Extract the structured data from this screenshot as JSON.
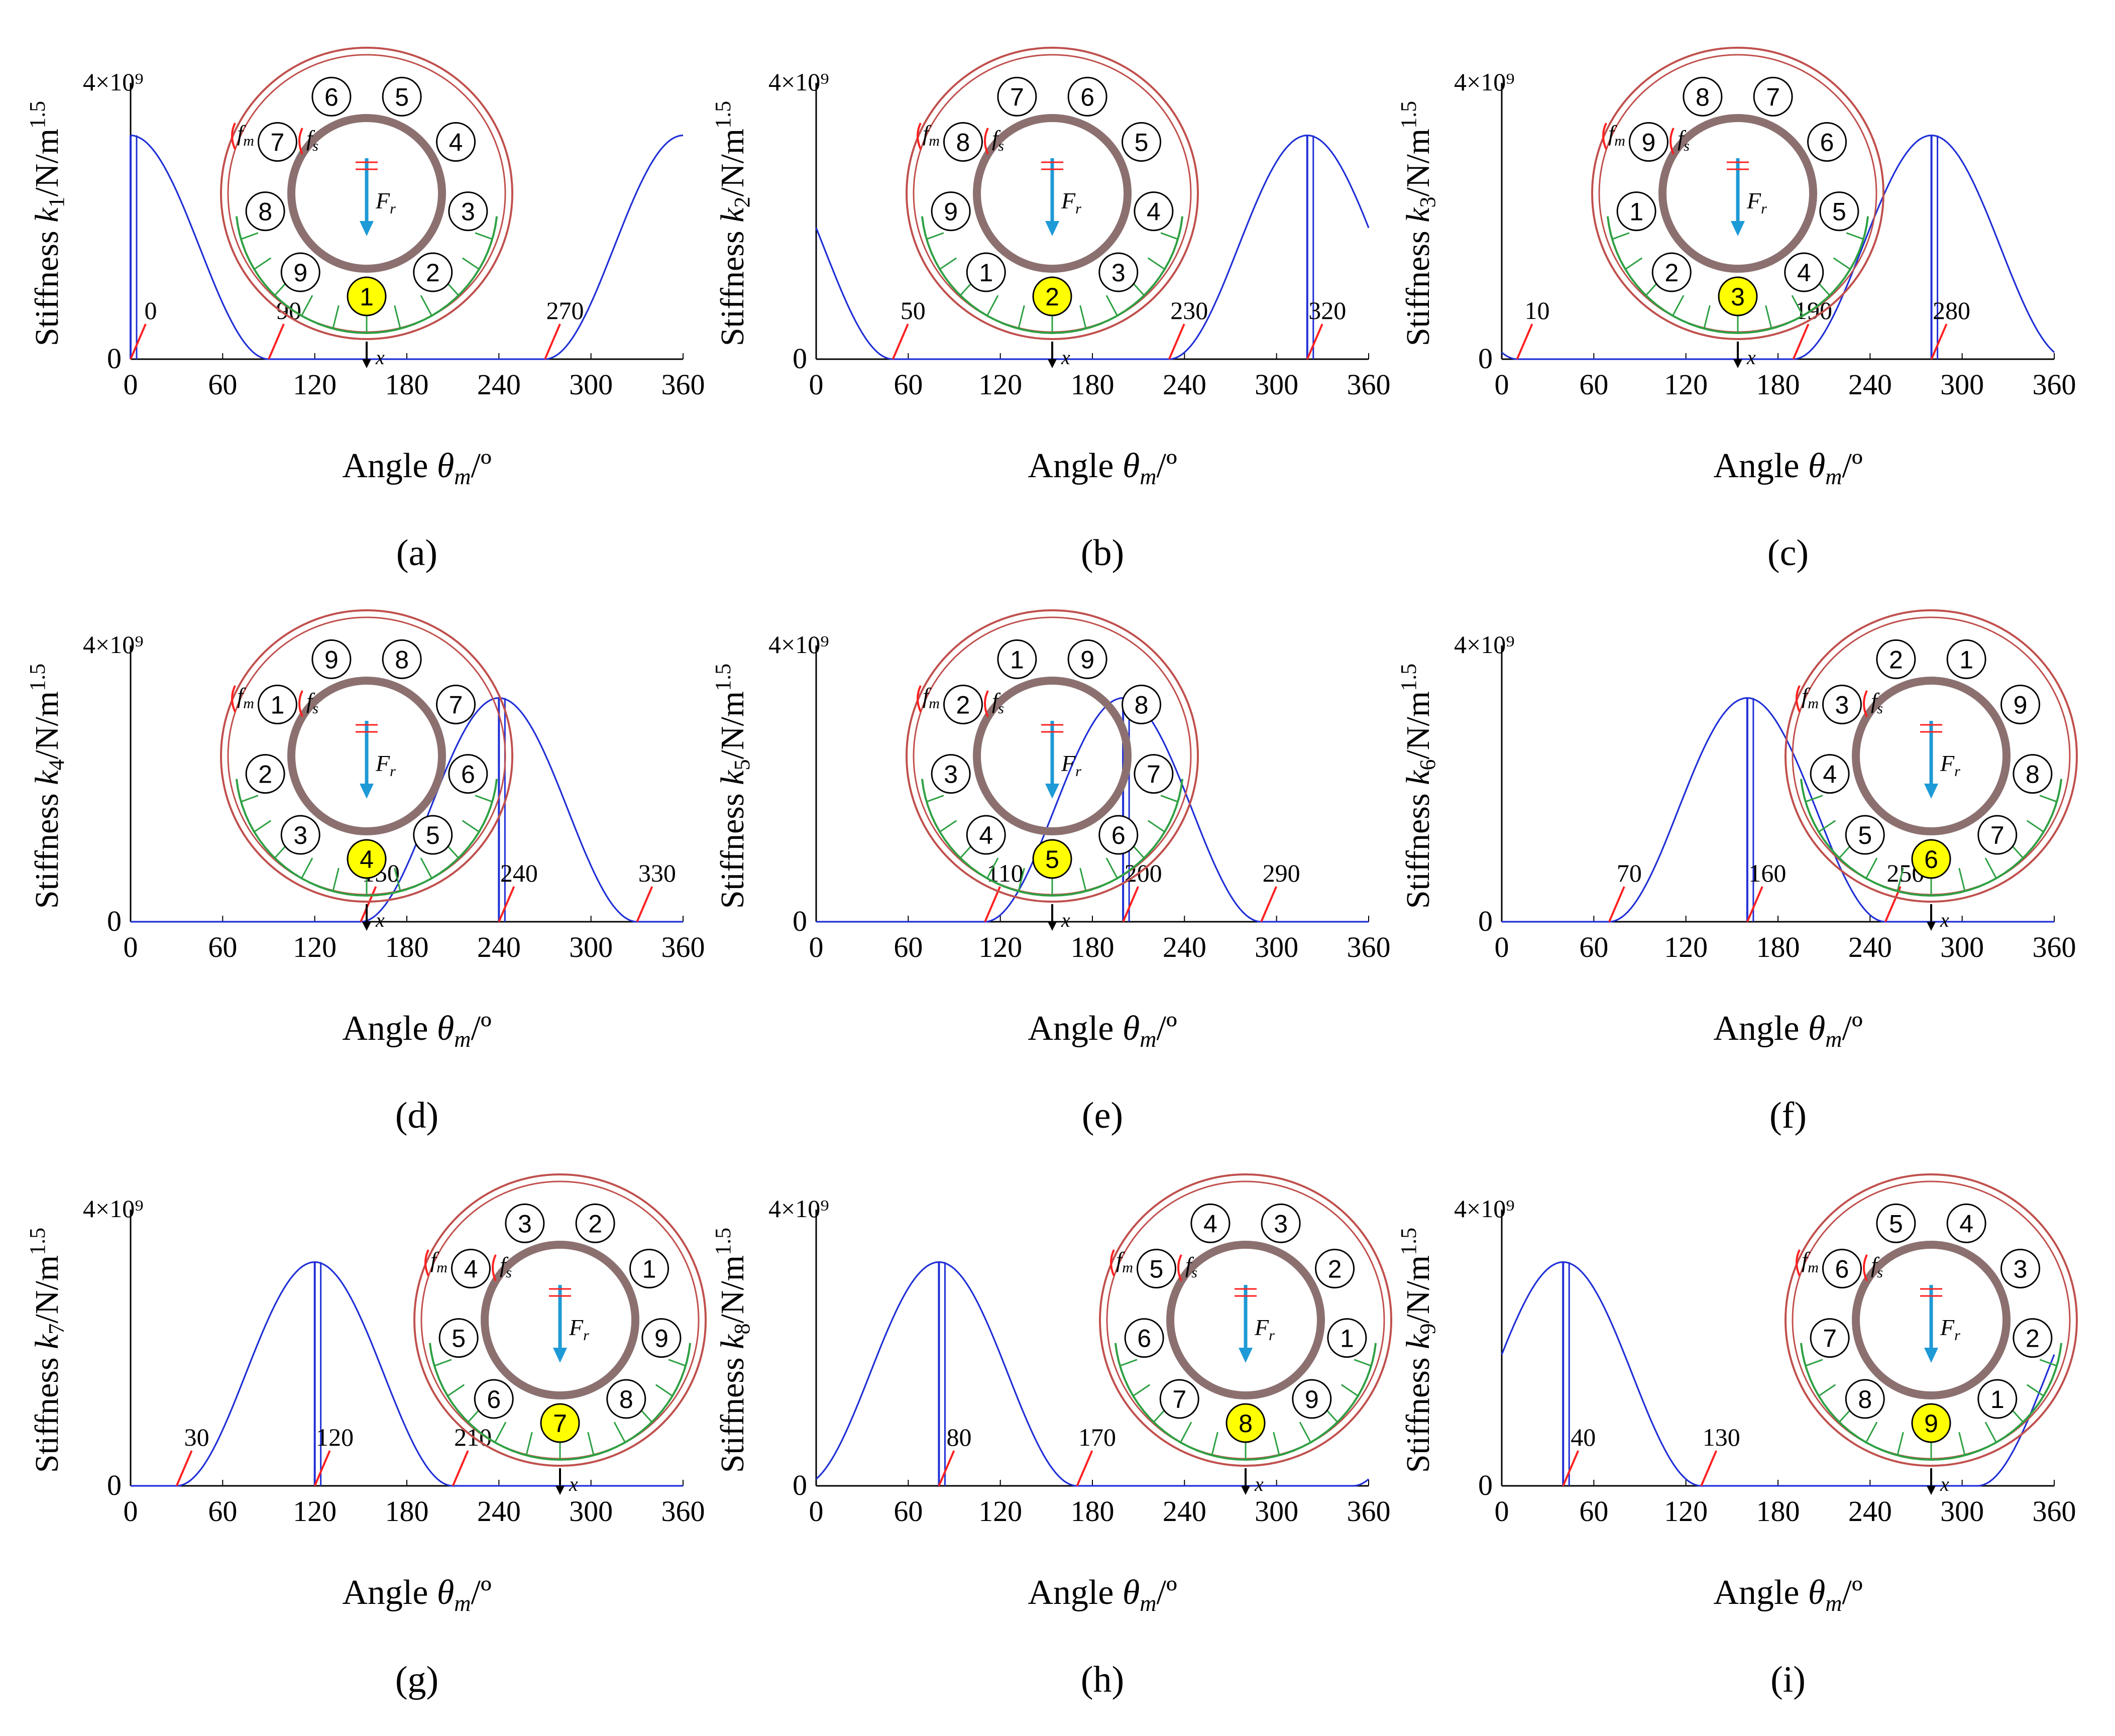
{
  "figure": {
    "tick_labels_x": [
      "0",
      "60",
      "120",
      "180",
      "240",
      "300",
      "360"
    ],
    "y_top_label": "4×10⁹",
    "y_zero_label": "0",
    "xlabel": "Angle θm/º",
    "ylabel_prefix": "Stiffness",
    "ylabel_unit": "/N/m",
    "ylabel_unit_exp": "1.5",
    "schematic_labels": {
      "fm": "fm",
      "fs": "fs",
      "Fr": "Fr",
      "x": "x"
    },
    "colors": {
      "curve": "#1f2fd6",
      "pointer": "#ff2020",
      "outer_ring": "#c0504d",
      "inner_ring": "#8c7070",
      "load_zone": "#2ea043",
      "force_arrow": "#1e9ad6",
      "highlight": "#ffff00"
    }
  },
  "chart_data": [
    {
      "type": "line",
      "panel_label": "(a)",
      "k_index": "1",
      "highlight_roller": 1,
      "title": "",
      "xlabel": "Angle θm/º",
      "ylabel": "Stiffness k1/N/m1.5",
      "xlim": [
        0,
        360
      ],
      "ylim": [
        0,
        4000000000
      ],
      "peak_stiffness": 3300000000,
      "peak_angle": 0,
      "contact_start": 270,
      "contact_end": 90,
      "annotations": [
        "0",
        "90",
        "270"
      ],
      "annotation_angles": [
        0,
        90,
        270
      ],
      "roller_positions": [
        1,
        2,
        3,
        4,
        5,
        6,
        7,
        8,
        9
      ],
      "schematic_side": "left"
    },
    {
      "type": "line",
      "panel_label": "(b)",
      "k_index": "2",
      "highlight_roller": 2,
      "title": "",
      "xlabel": "Angle θm/º",
      "ylabel": "Stiffness k2/N/m1.5",
      "xlim": [
        0,
        360
      ],
      "ylim": [
        0,
        4000000000
      ],
      "peak_stiffness": 3300000000,
      "peak_angle": 320,
      "contact_start": 230,
      "contact_end": 50,
      "annotations": [
        "50",
        "230",
        "320"
      ],
      "annotation_angles": [
        50,
        230,
        320
      ],
      "roller_positions": [
        2,
        3,
        4,
        5,
        6,
        7,
        8,
        9,
        1
      ],
      "schematic_side": "left"
    },
    {
      "type": "line",
      "panel_label": "(c)",
      "k_index": "3",
      "highlight_roller": 3,
      "title": "",
      "xlabel": "Angle θm/º",
      "ylabel": "Stiffness k3/N/m1.5",
      "xlim": [
        0,
        360
      ],
      "ylim": [
        0,
        4000000000
      ],
      "peak_stiffness": 3300000000,
      "peak_angle": 280,
      "contact_start": 190,
      "contact_end": 10,
      "annotations": [
        "10",
        "190",
        "280"
      ],
      "annotation_angles": [
        10,
        190,
        280
      ],
      "roller_positions": [
        3,
        4,
        5,
        6,
        7,
        8,
        9,
        1,
        2
      ],
      "schematic_side": "left"
    },
    {
      "type": "line",
      "panel_label": "(d)",
      "k_index": "4",
      "highlight_roller": 4,
      "title": "",
      "xlabel": "Angle θm/º",
      "ylabel": "Stiffness k4/N/m1.5",
      "xlim": [
        0,
        360
      ],
      "ylim": [
        0,
        4000000000
      ],
      "peak_stiffness": 3300000000,
      "peak_angle": 240,
      "contact_start": 150,
      "contact_end": 330,
      "annotations": [
        "150",
        "240",
        "330"
      ],
      "annotation_angles": [
        150,
        240,
        330
      ],
      "roller_positions": [
        4,
        5,
        6,
        7,
        8,
        9,
        1,
        2,
        3
      ],
      "schematic_side": "left"
    },
    {
      "type": "line",
      "panel_label": "(e)",
      "k_index": "5",
      "highlight_roller": 5,
      "title": "",
      "xlabel": "Angle θm/º",
      "ylabel": "Stiffness k5/N/m1.5",
      "xlim": [
        0,
        360
      ],
      "ylim": [
        0,
        4000000000
      ],
      "peak_stiffness": 3300000000,
      "peak_angle": 200,
      "contact_start": 110,
      "contact_end": 290,
      "annotations": [
        "110",
        "200",
        "290"
      ],
      "annotation_angles": [
        110,
        200,
        290
      ],
      "roller_positions": [
        5,
        6,
        7,
        8,
        9,
        1,
        2,
        3,
        4
      ],
      "schematic_side": "left"
    },
    {
      "type": "line",
      "panel_label": "(f)",
      "k_index": "6",
      "highlight_roller": 6,
      "title": "",
      "xlabel": "Angle θm/º",
      "ylabel": "Stiffness k6/N/m1.5",
      "xlim": [
        0,
        360
      ],
      "ylim": [
        0,
        4000000000
      ],
      "peak_stiffness": 3300000000,
      "peak_angle": 160,
      "contact_start": 70,
      "contact_end": 250,
      "annotations": [
        "70",
        "160",
        "250"
      ],
      "annotation_angles": [
        70,
        160,
        250
      ],
      "roller_positions": [
        6,
        7,
        8,
        9,
        1,
        2,
        3,
        4,
        5
      ],
      "schematic_side": "right"
    },
    {
      "type": "line",
      "panel_label": "(g)",
      "k_index": "7",
      "highlight_roller": 7,
      "title": "",
      "xlabel": "Angle θm/º",
      "ylabel": "Stiffness k7/N/m1.5",
      "xlim": [
        0,
        360
      ],
      "ylim": [
        0,
        4000000000
      ],
      "peak_stiffness": 3300000000,
      "peak_angle": 120,
      "contact_start": 30,
      "contact_end": 210,
      "annotations": [
        "30",
        "120",
        "210"
      ],
      "annotation_angles": [
        30,
        120,
        210
      ],
      "roller_positions": [
        7,
        8,
        9,
        1,
        2,
        3,
        4,
        5,
        6
      ],
      "schematic_side": "right"
    },
    {
      "type": "line",
      "panel_label": "(h)",
      "k_index": "8",
      "highlight_roller": 8,
      "title": "",
      "xlabel": "Angle θm/º",
      "ylabel": "Stiffness k8/N/m1.5",
      "xlim": [
        0,
        360
      ],
      "ylim": [
        0,
        4000000000
      ],
      "peak_stiffness": 3300000000,
      "peak_angle": 80,
      "contact_start": 350,
      "contact_end": 170,
      "annotations": [
        "80",
        "170"
      ],
      "annotation_angles": [
        80,
        170
      ],
      "roller_positions": [
        8,
        9,
        1,
        2,
        3,
        4,
        5,
        6,
        7
      ],
      "schematic_side": "right"
    },
    {
      "type": "line",
      "panel_label": "(i)",
      "k_index": "9",
      "highlight_roller": 9,
      "title": "",
      "xlabel": "Angle θm/º",
      "ylabel": "Stiffness k9/N/m1.5",
      "xlim": [
        0,
        360
      ],
      "ylim": [
        0,
        4000000000
      ],
      "peak_stiffness": 3300000000,
      "peak_angle": 40,
      "contact_start": 310,
      "contact_end": 130,
      "annotations": [
        "40",
        "130"
      ],
      "annotation_angles": [
        40,
        130
      ],
      "roller_positions": [
        9,
        1,
        2,
        3,
        4,
        5,
        6,
        7,
        8
      ],
      "schematic_side": "right"
    }
  ]
}
